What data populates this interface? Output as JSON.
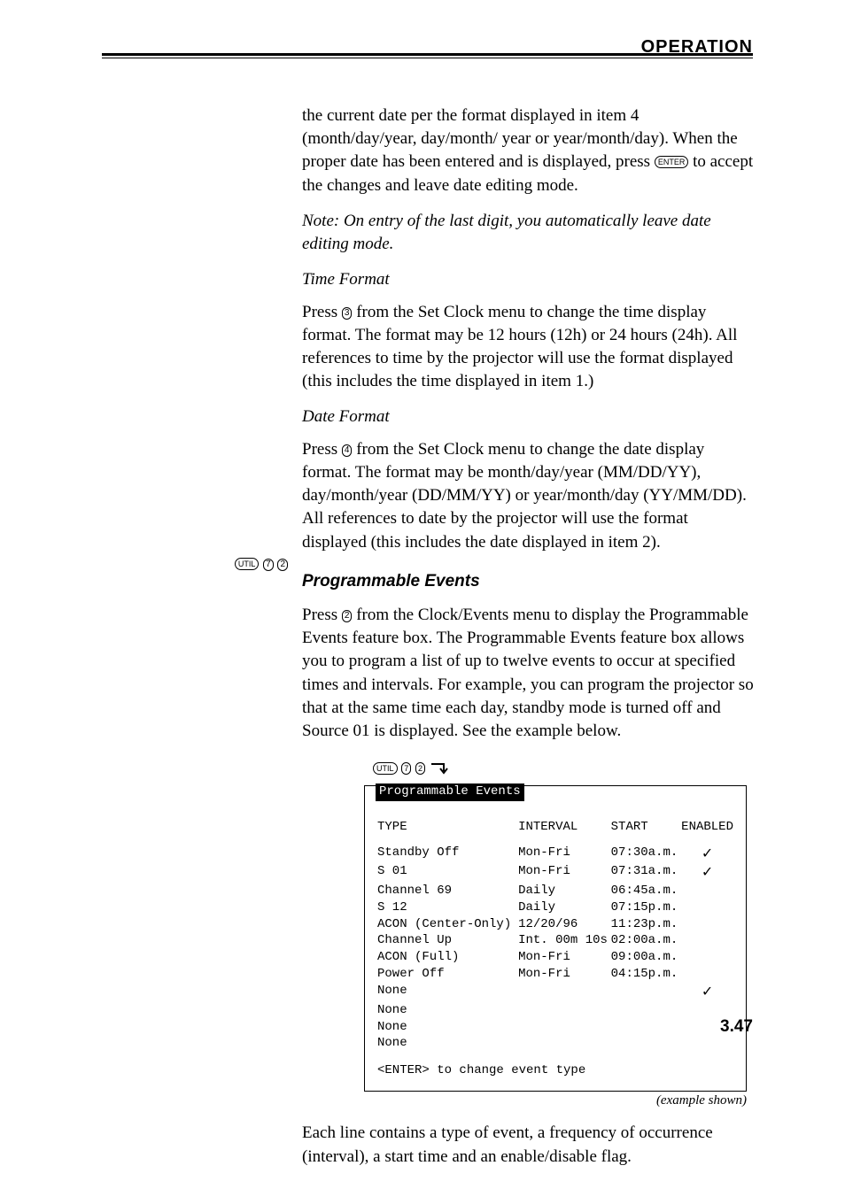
{
  "header": {
    "label": "OPERATION"
  },
  "content": {
    "para1": "the current date per the format displayed in item 4 (month/day/year, day/month/ year or year/month/day). When the proper date has been entered and is displayed, press ",
    "para1_key": "ENTER",
    "para1_after": " to accept the changes and leave date editing mode.",
    "note": "Note: On entry of the last digit, you automatically leave date editing mode.",
    "time_format_head": "Time Format",
    "time_para_pre": "Press ",
    "time_para_key": "3",
    "time_para_post": " from the Set Clock menu to change the time display format. The format may be 12 hours (12h) or 24 hours (24h). All references to time by the projector will use the format displayed (this includes the time displayed in item 1.)",
    "date_format_head": "Date Format",
    "date_para_pre": "Press ",
    "date_para_key": "4",
    "date_para_post": " from the Set Clock menu to change the date display format. The format may be month/day/year (MM/DD/YY), day/month/year (DD/MM/YY) or year/month/day (YY/MM/DD). All references to date by the projector will use the format displayed (this includes the date displayed in item 2).",
    "section_sub": "Programmable Events",
    "section_keys": [
      "UTIL",
      "7",
      "2"
    ],
    "prog_para_pre": "Press ",
    "prog_para_key": "2",
    "prog_para_post": " from the Clock/Events menu to display the Programmable Events feature box. The Programmable Events feature box allows you to program a list of up to twelve events to occur at specified times and intervals. For example, you can program the projector so that at the same time each day, standby mode is turned off and Source 01 is displayed. See the example below.",
    "tail_para": "Each line contains a type of event, a frequency of occurrence (interval), a start time and an enable/disable flag.",
    "example_shown": "(example shown)"
  },
  "figure": {
    "arrow_keys": [
      "UTIL",
      "7",
      "2"
    ],
    "box_title": "Programmable Events",
    "headers": {
      "type": "TYPE",
      "interval": "INTERVAL",
      "start": "START",
      "enabled": "ENABLED"
    },
    "rows": [
      {
        "type": "Standby Off",
        "interval": "Mon-Fri",
        "start": "07:30a.m.",
        "enabled": "✓"
      },
      {
        "type": "S 01",
        "interval": "Mon-Fri",
        "start": "07:31a.m.",
        "enabled": "✓"
      },
      {
        "type": "Channel 69",
        "interval": "Daily",
        "start": "06:45a.m.",
        "enabled": ""
      },
      {
        "type": "S 12",
        "interval": "Daily",
        "start": "07:15p.m.",
        "enabled": ""
      },
      {
        "type": "ACON (Center-Only)",
        "interval": "12/20/96",
        "start": "11:23p.m.",
        "enabled": ""
      },
      {
        "type": "Channel Up",
        "interval": "Int. 00m 10s",
        "start": "02:00a.m.",
        "enabled": ""
      },
      {
        "type": "ACON (Full)",
        "interval": "Mon-Fri",
        "start": "09:00a.m.",
        "enabled": ""
      },
      {
        "type": "Power Off",
        "interval": "Mon-Fri",
        "start": "04:15p.m.",
        "enabled": ""
      },
      {
        "type": "None",
        "interval": "",
        "start": "",
        "enabled": "✓"
      },
      {
        "type": "None",
        "interval": "",
        "start": "",
        "enabled": ""
      },
      {
        "type": "None",
        "interval": "",
        "start": "",
        "enabled": ""
      },
      {
        "type": "None",
        "interval": "",
        "start": "",
        "enabled": ""
      }
    ],
    "instruction": "<ENTER> to change event type"
  },
  "page_number": "3.47"
}
